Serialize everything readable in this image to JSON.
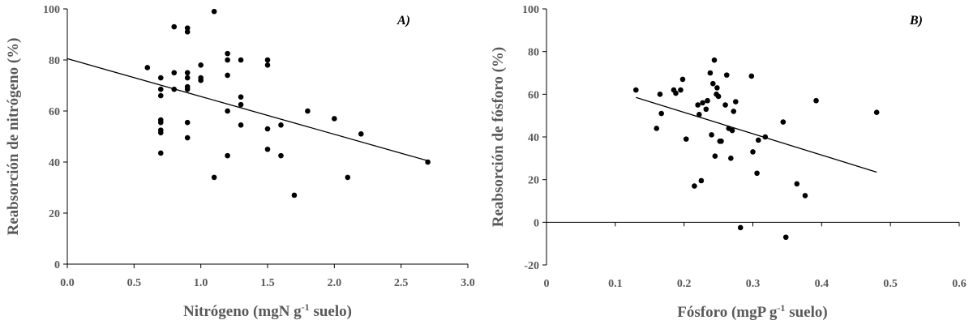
{
  "chart_data": [
    {
      "type": "scatter",
      "panel_label": "A)",
      "xlabel": "Nitrógeno (mgN g",
      "xlabel_sup": "-1",
      "xlabel_tail": " suelo)",
      "ylabel": "Reabsorción de nitrógeno (%)",
      "xlim": [
        0,
        3
      ],
      "ylim": [
        0,
        100
      ],
      "xticks": [
        0,
        0.5,
        1,
        1.5,
        2,
        2.5,
        3
      ],
      "xtick_labels": [
        "0.0",
        "0.5",
        "1.0",
        "1.5",
        "2.0",
        "2.5",
        "3.0"
      ],
      "yticks": [
        0,
        20,
        40,
        60,
        80,
        100
      ],
      "ytick_labels": [
        "0",
        "20",
        "40",
        "60",
        "80",
        "100"
      ],
      "trendline": [
        [
          0,
          80.5
        ],
        [
          2.7,
          40.5
        ]
      ],
      "points": [
        [
          0.6,
          77
        ],
        [
          0.7,
          73
        ],
        [
          0.7,
          68.5
        ],
        [
          0.7,
          66
        ],
        [
          0.7,
          56.5
        ],
        [
          0.7,
          55.5
        ],
        [
          0.7,
          52.5
        ],
        [
          0.7,
          51.5
        ],
        [
          0.7,
          43.5
        ],
        [
          0.8,
          93
        ],
        [
          0.8,
          75
        ],
        [
          0.8,
          68.5
        ],
        [
          0.9,
          92.5
        ],
        [
          0.9,
          91
        ],
        [
          0.9,
          75
        ],
        [
          0.9,
          73
        ],
        [
          0.9,
          69.5
        ],
        [
          0.9,
          68.5
        ],
        [
          0.9,
          55.5
        ],
        [
          0.9,
          49.5
        ],
        [
          1.0,
          78
        ],
        [
          1.0,
          73
        ],
        [
          1.0,
          72
        ],
        [
          1.1,
          99
        ],
        [
          1.1,
          34
        ],
        [
          1.2,
          82.5
        ],
        [
          1.2,
          80
        ],
        [
          1.2,
          74
        ],
        [
          1.2,
          60
        ],
        [
          1.2,
          42.5
        ],
        [
          1.3,
          80
        ],
        [
          1.3,
          65.5
        ],
        [
          1.3,
          62.5
        ],
        [
          1.3,
          54.5
        ],
        [
          1.5,
          80
        ],
        [
          1.5,
          78
        ],
        [
          1.5,
          53
        ],
        [
          1.5,
          45
        ],
        [
          1.6,
          54.5
        ],
        [
          1.6,
          42.5
        ],
        [
          1.7,
          27
        ],
        [
          1.8,
          60
        ],
        [
          2.0,
          57
        ],
        [
          2.1,
          34
        ],
        [
          2.2,
          51
        ],
        [
          2.7,
          40
        ]
      ]
    },
    {
      "type": "scatter",
      "panel_label": "B)",
      "xlabel": "Fósforo (mgP g",
      "xlabel_sup": "-1",
      "xlabel_tail": " suelo)",
      "ylabel": "Reabsorción de fósforo (%)",
      "xlim": [
        0,
        0.6
      ],
      "ylim": [
        -20,
        100
      ],
      "xticks": [
        0,
        0.1,
        0.2,
        0.3,
        0.4,
        0.5,
        0.6
      ],
      "xtick_labels": [
        "0",
        "0.1",
        "0.2",
        "0.3",
        "0.4",
        "0.5",
        "0.6"
      ],
      "yticks": [
        -20,
        0,
        20,
        40,
        60,
        80,
        100
      ],
      "ytick_labels": [
        "-20",
        "0",
        "20",
        "40",
        "60",
        "80",
        "100"
      ],
      "trendline": [
        [
          0.13,
          58.5
        ],
        [
          0.48,
          23.5
        ]
      ],
      "points": [
        [
          0.13,
          62
        ],
        [
          0.16,
          44
        ],
        [
          0.165,
          60
        ],
        [
          0.167,
          51
        ],
        [
          0.185,
          62
        ],
        [
          0.188,
          60.5
        ],
        [
          0.195,
          62
        ],
        [
          0.198,
          67
        ],
        [
          0.203,
          39
        ],
        [
          0.215,
          17
        ],
        [
          0.22,
          55
        ],
        [
          0.222,
          50.5
        ],
        [
          0.225,
          19.5
        ],
        [
          0.227,
          56
        ],
        [
          0.232,
          53
        ],
        [
          0.234,
          57
        ],
        [
          0.238,
          70
        ],
        [
          0.24,
          41
        ],
        [
          0.242,
          65
        ],
        [
          0.244,
          76
        ],
        [
          0.245,
          31
        ],
        [
          0.247,
          60
        ],
        [
          0.248,
          63
        ],
        [
          0.25,
          59
        ],
        [
          0.252,
          38
        ],
        [
          0.254,
          38
        ],
        [
          0.26,
          55
        ],
        [
          0.262,
          69
        ],
        [
          0.265,
          44
        ],
        [
          0.268,
          30
        ],
        [
          0.27,
          43
        ],
        [
          0.272,
          52
        ],
        [
          0.275,
          56.5
        ],
        [
          0.282,
          -2.5
        ],
        [
          0.298,
          68.5
        ],
        [
          0.3,
          33
        ],
        [
          0.306,
          23
        ],
        [
          0.308,
          38.5
        ],
        [
          0.318,
          40
        ],
        [
          0.344,
          47
        ],
        [
          0.348,
          -7
        ],
        [
          0.364,
          18
        ],
        [
          0.376,
          12.5
        ],
        [
          0.392,
          57
        ],
        [
          0.48,
          51.5
        ]
      ]
    }
  ]
}
